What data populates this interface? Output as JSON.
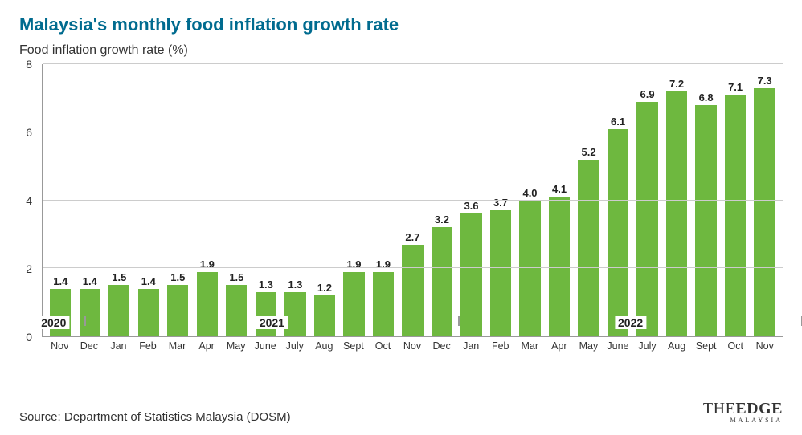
{
  "title": "Malaysia's monthly food inflation growth rate",
  "subtitle": "Food inflation growth rate (%)",
  "source": "Source: Department of Statistics Malaysia (DOSM)",
  "logo": {
    "prefix": "THE",
    "main": "EDGE",
    "sub": "MALAYSIA"
  },
  "chart": {
    "type": "bar",
    "ylim": [
      0,
      8
    ],
    "ytick_step": 2,
    "bar_color": "#6eb83f",
    "grid_color": "#cccccc",
    "axis_color": "#999999",
    "background_color": "#ffffff",
    "title_color": "#006b8f",
    "label_color": "#333333",
    "value_fontsize": 13,
    "xlabel_fontsize": 12.5,
    "points": [
      {
        "m": "Nov",
        "v": 1.4
      },
      {
        "m": "Dec",
        "v": 1.4
      },
      {
        "m": "Jan",
        "v": 1.5
      },
      {
        "m": "Feb",
        "v": 1.4
      },
      {
        "m": "Mar",
        "v": 1.5
      },
      {
        "m": "Apr",
        "v": 1.9
      },
      {
        "m": "May",
        "v": 1.5
      },
      {
        "m": "June",
        "v": 1.3
      },
      {
        "m": "July",
        "v": 1.3
      },
      {
        "m": "Aug",
        "v": 1.2
      },
      {
        "m": "Sept",
        "v": 1.9
      },
      {
        "m": "Oct",
        "v": 1.9
      },
      {
        "m": "Nov",
        "v": 2.7
      },
      {
        "m": "Dec",
        "v": 3.2
      },
      {
        "m": "Jan",
        "v": 3.6
      },
      {
        "m": "Feb",
        "v": 3.7
      },
      {
        "m": "Mar",
        "v": 4.0
      },
      {
        "m": "Apr",
        "v": 4.1
      },
      {
        "m": "May",
        "v": 5.2
      },
      {
        "m": "June",
        "v": 6.1
      },
      {
        "m": "July",
        "v": 6.9
      },
      {
        "m": "Aug",
        "v": 7.2
      },
      {
        "m": "Sept",
        "v": 6.8
      },
      {
        "m": "Oct",
        "v": 7.1
      },
      {
        "m": "Nov",
        "v": 7.3
      }
    ],
    "year_groups": [
      {
        "label": "2020",
        "start": 0,
        "end": 2
      },
      {
        "label": "2021",
        "start": 2,
        "end": 14
      },
      {
        "label": "2022",
        "start": 14,
        "end": 25
      }
    ]
  }
}
